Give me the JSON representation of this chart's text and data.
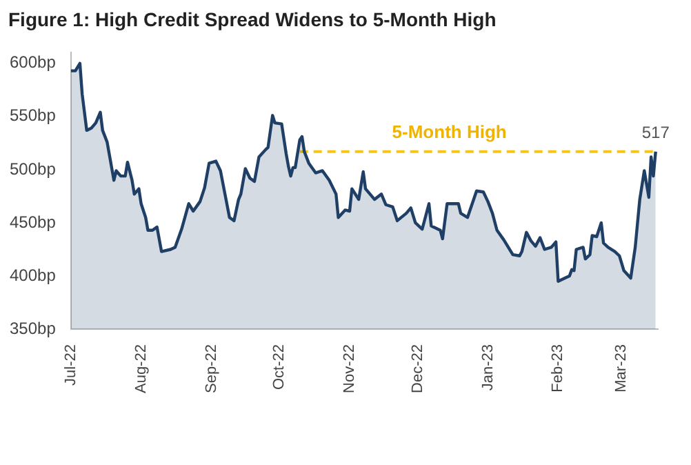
{
  "chart_data": {
    "type": "area",
    "title": "Figure 1: High Credit Spread Widens to 5-Month High",
    "xlim": [
      "2022-07-01",
      "2023-03-17"
    ],
    "xticks": [
      {
        "value": "2022-07-01",
        "label": "Jul-22"
      },
      {
        "value": "2022-08-01",
        "label": "Aug-22"
      },
      {
        "value": "2022-09-01",
        "label": "Sep-22"
      },
      {
        "value": "2022-10-01",
        "label": "Oct-22"
      },
      {
        "value": "2022-11-01",
        "label": "Nov-22"
      },
      {
        "value": "2022-12-01",
        "label": "Dec-22"
      },
      {
        "value": "2023-01-01",
        "label": "Jan-23"
      },
      {
        "value": "2023-02-01",
        "label": "Feb-23"
      },
      {
        "value": "2023-03-01",
        "label": "Mar-23"
      }
    ],
    "ylim": [
      350,
      610
    ],
    "yticks": [
      {
        "value": 350,
        "label": "350bp"
      },
      {
        "value": 400,
        "label": "400bp"
      },
      {
        "value": 450,
        "label": "450bp"
      },
      {
        "value": 500,
        "label": "500bp"
      },
      {
        "value": 550,
        "label": "550bp"
      },
      {
        "value": 600,
        "label": "600bp"
      }
    ],
    "grid": false,
    "legend": false,
    "marker": "none",
    "series": [
      {
        "color": "#1f3f66",
        "x": [
          "2022-07-01",
          "2022-07-03",
          "2022-07-05",
          "2022-07-06",
          "2022-07-08",
          "2022-07-10",
          "2022-07-12",
          "2022-07-14",
          "2022-07-15",
          "2022-07-17",
          "2022-07-20",
          "2022-07-21",
          "2022-07-23",
          "2022-07-25",
          "2022-07-26",
          "2022-07-28",
          "2022-07-29",
          "2022-07-31",
          "2022-08-01",
          "2022-08-03",
          "2022-08-04",
          "2022-08-06",
          "2022-08-08",
          "2022-08-10",
          "2022-08-14",
          "2022-08-16",
          "2022-08-19",
          "2022-08-22",
          "2022-08-24",
          "2022-08-27",
          "2022-08-29",
          "2022-08-31",
          "2022-09-03",
          "2022-09-05",
          "2022-09-07",
          "2022-09-09",
          "2022-09-11",
          "2022-09-13",
          "2022-09-14",
          "2022-09-16",
          "2022-09-18",
          "2022-09-20",
          "2022-09-22",
          "2022-09-25",
          "2022-09-26",
          "2022-09-28",
          "2022-09-29",
          "2022-10-02",
          "2022-10-04",
          "2022-10-05",
          "2022-10-06",
          "2022-10-07",
          "2022-10-08",
          "2022-10-10",
          "2022-10-11",
          "2022-10-12",
          "2022-10-14",
          "2022-10-17",
          "2022-10-20",
          "2022-10-23",
          "2022-10-26",
          "2022-10-27",
          "2022-10-30",
          "2022-11-01",
          "2022-11-02",
          "2022-11-05",
          "2022-11-07",
          "2022-11-08",
          "2022-11-12",
          "2022-11-15",
          "2022-11-17",
          "2022-11-20",
          "2022-11-22",
          "2022-11-26",
          "2022-11-28",
          "2022-11-30",
          "2022-12-03",
          "2022-12-06",
          "2022-12-07",
          "2022-12-11",
          "2022-12-12",
          "2022-12-14",
          "2022-12-17",
          "2022-12-19",
          "2022-12-20",
          "2022-12-23",
          "2022-12-27",
          "2022-12-30",
          "2023-01-01",
          "2023-01-03",
          "2023-01-05",
          "2023-01-08",
          "2023-01-12",
          "2023-01-15",
          "2023-01-16",
          "2023-01-18",
          "2023-01-20",
          "2023-01-22",
          "2023-01-24",
          "2023-01-26",
          "2023-01-29",
          "2023-01-31",
          "2023-02-01",
          "2023-02-04",
          "2023-02-06",
          "2023-02-07",
          "2023-02-08",
          "2023-02-09",
          "2023-02-12",
          "2023-02-13",
          "2023-02-15",
          "2023-02-16",
          "2023-02-18",
          "2023-02-20",
          "2023-02-21",
          "2023-02-23",
          "2023-02-26",
          "2023-02-28",
          "2023-03-02",
          "2023-03-05",
          "2023-03-07",
          "2023-03-09",
          "2023-03-11",
          "2023-03-13",
          "2023-03-14",
          "2023-03-15",
          "2023-03-16"
        ],
        "values": [
          593,
          593,
          600,
          571,
          537,
          539,
          544,
          554,
          537,
          526,
          490,
          499,
          494,
          494,
          507,
          490,
          477,
          482,
          468,
          455,
          443,
          443,
          446,
          423,
          425,
          427,
          445,
          468,
          461,
          470,
          483,
          506,
          508,
          499,
          477,
          455,
          452,
          472,
          477,
          501,
          492,
          489,
          512,
          519,
          521,
          551,
          544,
          543,
          515,
          503,
          494,
          502,
          502,
          528,
          531,
          517,
          506,
          497,
          499,
          490,
          477,
          455,
          462,
          461,
          482,
          472,
          498,
          482,
          472,
          477,
          467,
          465,
          452,
          459,
          464,
          450,
          444,
          468,
          447,
          443,
          435,
          468,
          468,
          468,
          459,
          455,
          480,
          479,
          470,
          459,
          443,
          434,
          420,
          419,
          423,
          441,
          433,
          428,
          436,
          425,
          427,
          432,
          395,
          398,
          400,
          406,
          405,
          425,
          427,
          416,
          420,
          438,
          437,
          450,
          431,
          427,
          423,
          419,
          405,
          398,
          427,
          472,
          499,
          474,
          512,
          494,
          517
        ]
      },
      {
        "type": "line",
        "color": "#f5c518",
        "line_style": "dashed",
        "x": [
          "2022-10-10",
          "2023-03-16"
        ],
        "values": [
          517,
          517
        ]
      }
    ],
    "annotations": [
      {
        "text": "5-Month High",
        "x": "2022-12-15",
        "y": 517
      },
      {
        "text": "517",
        "x": "2023-03-16",
        "y": 517
      }
    ]
  }
}
